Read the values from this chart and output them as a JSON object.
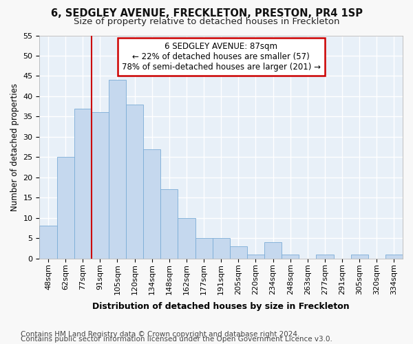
{
  "title": "6, SEDGLEY AVENUE, FRECKLETON, PRESTON, PR4 1SP",
  "subtitle": "Size of property relative to detached houses in Freckleton",
  "xlabel": "Distribution of detached houses by size in Freckleton",
  "ylabel": "Number of detached properties",
  "bar_color": "#c5d8ee",
  "bar_edge_color": "#7aacd6",
  "background_color": "#e8f0f8",
  "grid_color": "#ffffff",
  "categories": [
    "48sqm",
    "62sqm",
    "77sqm",
    "91sqm",
    "105sqm",
    "120sqm",
    "134sqm",
    "148sqm",
    "162sqm",
    "177sqm",
    "191sqm",
    "205sqm",
    "220sqm",
    "234sqm",
    "248sqm",
    "263sqm",
    "277sqm",
    "291sqm",
    "305sqm",
    "320sqm",
    "334sqm"
  ],
  "values": [
    8,
    25,
    37,
    36,
    44,
    38,
    27,
    17,
    10,
    5,
    5,
    3,
    1,
    4,
    1,
    0,
    1,
    0,
    1,
    0,
    1
  ],
  "vline_index": 3,
  "vline_color": "#cc0000",
  "annotation_text": "6 SEDGLEY AVENUE: 87sqm\n← 22% of detached houses are smaller (57)\n78% of semi-detached houses are larger (201) →",
  "annotation_box_color": "#cc0000",
  "ylim": [
    0,
    55
  ],
  "yticks": [
    0,
    5,
    10,
    15,
    20,
    25,
    30,
    35,
    40,
    45,
    50,
    55
  ],
  "footer1": "Contains HM Land Registry data © Crown copyright and database right 2024.",
  "footer2": "Contains public sector information licensed under the Open Government Licence v3.0.",
  "title_fontsize": 10.5,
  "subtitle_fontsize": 9.5,
  "xlabel_fontsize": 9,
  "ylabel_fontsize": 8.5,
  "tick_fontsize": 8,
  "annotation_fontsize": 8.5,
  "footer_fontsize": 7.5,
  "fig_bg": "#f8f8f8"
}
